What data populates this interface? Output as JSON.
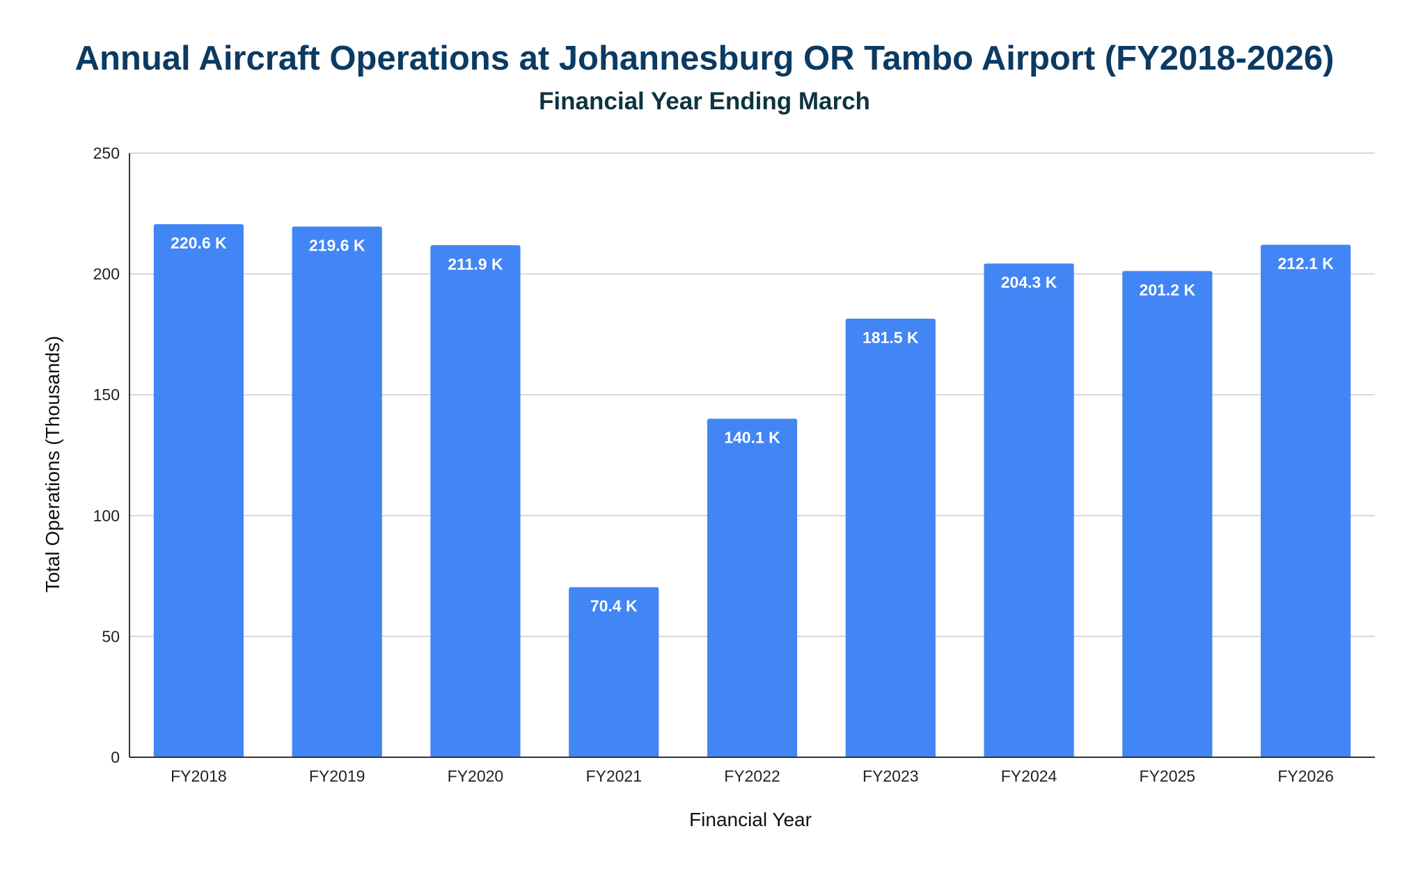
{
  "chart_data": {
    "type": "bar",
    "title": "Annual Aircraft Operations at Johannesburg OR Tambo Airport (FY2018-2026)",
    "subtitle": "Financial Year Ending March",
    "xlabel": "Financial Year",
    "ylabel": "Total Operations (Thousands)",
    "ylim": [
      0,
      250
    ],
    "yticks": [
      0,
      50,
      100,
      150,
      200,
      250
    ],
    "grid": true,
    "legend": "none",
    "categories": [
      "FY2018",
      "FY2019",
      "FY2020",
      "FY2021",
      "FY2022",
      "FY2023",
      "FY2024",
      "FY2025",
      "FY2026"
    ],
    "values": [
      220.6,
      219.6,
      211.9,
      70.4,
      140.1,
      181.5,
      204.3,
      201.2,
      212.1
    ],
    "data_labels": [
      "220.6 K",
      "219.6 K",
      "211.9 K",
      "70.4 K",
      "140.1 K",
      "181.5 K",
      "204.3 K",
      "201.2 K",
      "212.1 K"
    ],
    "colors": {
      "bar": "#4285f4",
      "grid": "#cccccc",
      "axis": "#333333",
      "title": "#0b3a63",
      "subtitle": "#0d3440"
    }
  }
}
